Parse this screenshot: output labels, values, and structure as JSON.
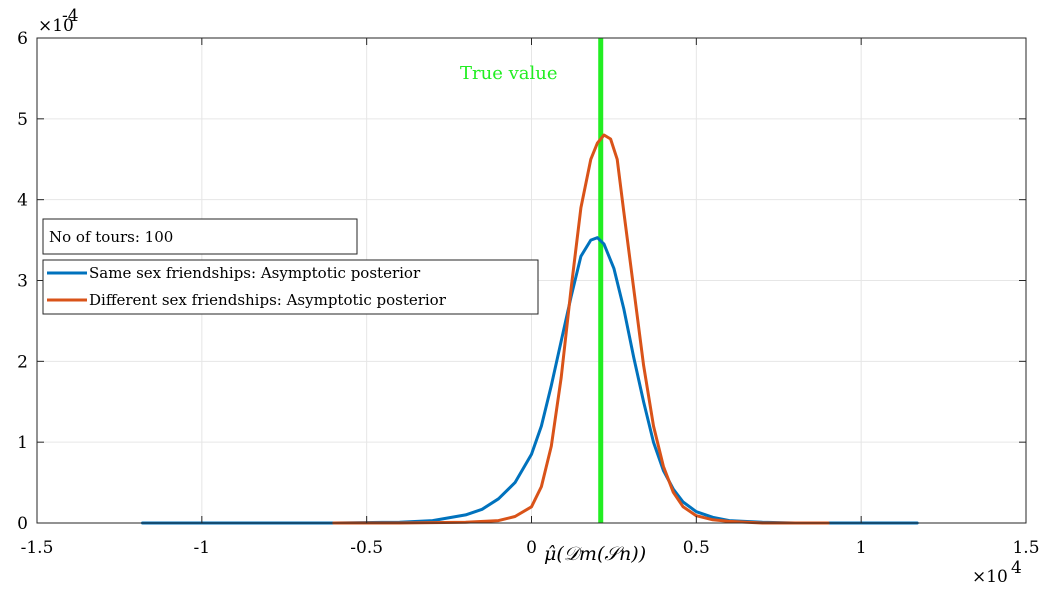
{
  "chart_data": {
    "type": "line",
    "xlabel": "μ̂(𝒟m(𝒮n))",
    "ylabel": "",
    "xlim": [
      -1.5,
      1.5
    ],
    "ylim": [
      0,
      6
    ],
    "x_ticks": [
      -1.5,
      -1,
      -0.5,
      0,
      0.5,
      1,
      1.5
    ],
    "x_tick_labels": [
      "-1.5",
      "-1",
      "-0.5",
      "0",
      "0.5",
      "1",
      "1.5"
    ],
    "y_ticks": [
      0,
      1,
      2,
      3,
      4,
      5,
      6
    ],
    "y_tick_labels": [
      "0",
      "1",
      "2",
      "3",
      "4",
      "5",
      "6"
    ],
    "x_exponent": "×10",
    "x_exponent_power": "4",
    "y_exponent": "×10",
    "y_exponent_power": "-4",
    "grid": true,
    "legend_placement": "left",
    "textbox": "No of tours: 100",
    "annotation": {
      "text": "True value",
      "x": 0.21
    },
    "true_value_color": "#22ee22",
    "series": [
      {
        "name": "Same sex friendships: Asymptotic posterior",
        "color": "#0072bd",
        "x": [
          -1.18,
          -0.9,
          -0.6,
          -0.4,
          -0.3,
          -0.2,
          -0.15,
          -0.1,
          -0.05,
          0,
          0.03,
          0.06,
          0.09,
          0.12,
          0.15,
          0.18,
          0.2,
          0.22,
          0.25,
          0.28,
          0.31,
          0.34,
          0.37,
          0.4,
          0.43,
          0.46,
          0.5,
          0.55,
          0.6,
          0.7,
          0.8,
          0.9,
          1.0,
          1.17
        ],
        "y": [
          0,
          0,
          0,
          0.01,
          0.03,
          0.1,
          0.17,
          0.3,
          0.5,
          0.85,
          1.2,
          1.7,
          2.25,
          2.8,
          3.3,
          3.5,
          3.53,
          3.45,
          3.15,
          2.65,
          2.05,
          1.5,
          1.0,
          0.65,
          0.42,
          0.26,
          0.14,
          0.07,
          0.03,
          0.01,
          0,
          0,
          0,
          0
        ]
      },
      {
        "name": "Different sex friendships: Asymptotic posterior",
        "color": "#d95319",
        "x": [
          -0.6,
          -0.4,
          -0.2,
          -0.1,
          -0.05,
          0,
          0.03,
          0.06,
          0.09,
          0.12,
          0.15,
          0.18,
          0.2,
          0.22,
          0.24,
          0.26,
          0.28,
          0.31,
          0.34,
          0.37,
          0.4,
          0.43,
          0.46,
          0.5,
          0.55,
          0.6,
          0.7,
          0.8,
          0.9
        ],
        "y": [
          0,
          0,
          0.01,
          0.03,
          0.08,
          0.2,
          0.45,
          0.95,
          1.8,
          2.9,
          3.9,
          4.5,
          4.7,
          4.8,
          4.75,
          4.5,
          3.85,
          2.9,
          1.95,
          1.2,
          0.7,
          0.38,
          0.2,
          0.09,
          0.04,
          0.02,
          0,
          0,
          0
        ]
      }
    ]
  }
}
